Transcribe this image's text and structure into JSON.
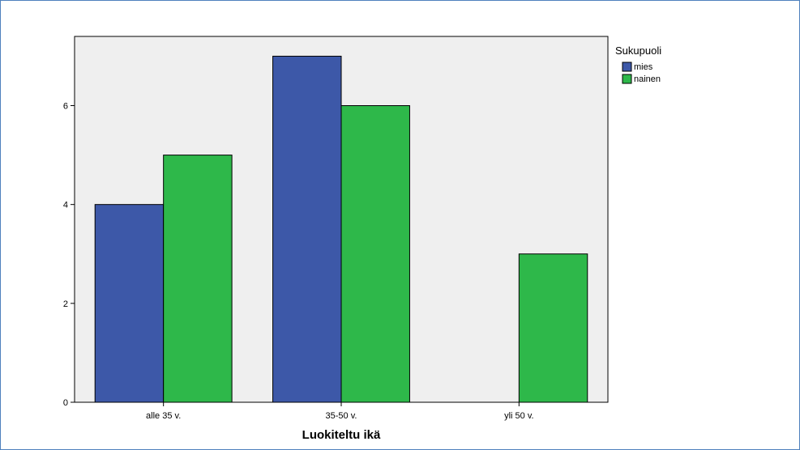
{
  "chart_data": {
    "type": "bar",
    "categories": [
      "alle 35 v.",
      "35-50 v.",
      "yli 50 v."
    ],
    "series": [
      {
        "name": "mies",
        "values": [
          4,
          7,
          0
        ],
        "color": "#3d58a8"
      },
      {
        "name": "nainen",
        "values": [
          5,
          6,
          3
        ],
        "color": "#2eb84a"
      }
    ],
    "title": "",
    "xlabel": "Luokiteltu ikä",
    "ylabel": "",
    "ylim": [
      0,
      7.4
    ],
    "yticks": [
      0,
      2,
      4,
      6
    ],
    "legend_title": "Sukupuoli",
    "legend_position": "top-right",
    "plot_background": "#efefef",
    "grid": false
  }
}
